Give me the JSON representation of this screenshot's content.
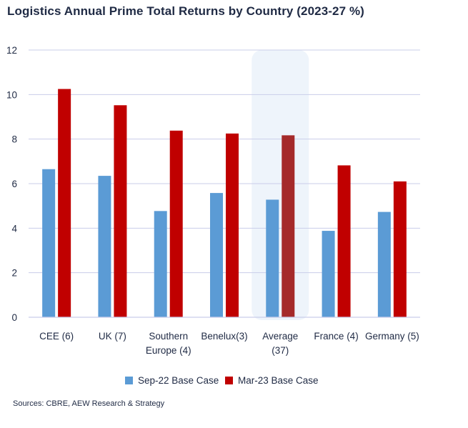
{
  "chart_data": {
    "type": "bar",
    "title": "Logistics Annual Prime Total Returns by Country (2023-27 %)",
    "categories": [
      [
        "CEE (6)"
      ],
      [
        "UK (7)"
      ],
      [
        "Southern",
        "Europe (4)"
      ],
      [
        "Benelux(3)"
      ],
      [
        "Average",
        "(37)"
      ],
      [
        "France (4)"
      ],
      [
        "Germany (5)"
      ]
    ],
    "series": [
      {
        "name": "Sep-22 Base Case",
        "color": "#5b9bd5",
        "values": [
          6.65,
          6.35,
          4.77,
          5.58,
          5.28,
          3.88,
          4.73
        ]
      },
      {
        "name": "Mar-23 Base Case",
        "color": "#c00000",
        "values": [
          10.25,
          9.52,
          8.38,
          8.25,
          8.17,
          6.82,
          6.1
        ]
      }
    ],
    "highlight_category": "Average (37)",
    "highlight_color": "#eef4fb",
    "highlight_series_color": "#a52a2a",
    "ylim": [
      0,
      12
    ],
    "yticks": [
      0,
      2,
      4,
      6,
      8,
      10,
      12
    ],
    "grid": true,
    "legend_position": "bottom",
    "source": "Sources: CBRE, AEW Research & Strategy"
  }
}
